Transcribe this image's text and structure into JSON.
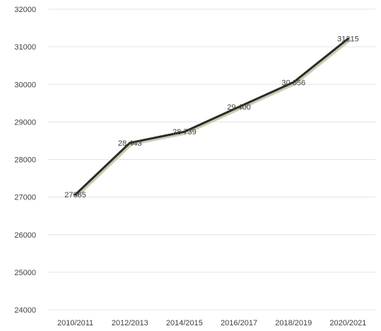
{
  "chart_data": {
    "type": "line",
    "title": "",
    "xlabel": "",
    "ylabel": "",
    "categories": [
      "2010/2011",
      "2012/2013",
      "2014/2015",
      "2016/2017",
      "2018/2019",
      "2020/2021"
    ],
    "series": [
      {
        "values": [
          27065,
          28443,
          28739,
          29400,
          30056,
          31215
        ]
      }
    ],
    "data_labels": [
      "27065",
      "28 443",
      "28 739",
      "29 400",
      "30 056",
      "31215"
    ],
    "y_ticks": [
      "24000",
      "25000",
      "26000",
      "27000",
      "28000",
      "29000",
      "30000",
      "31000",
      "32000"
    ],
    "ylim": [
      24000,
      32000
    ],
    "grid": true,
    "legend": "none",
    "line_color": "#2b2b24",
    "shadow_color": "#c9ccb4"
  }
}
